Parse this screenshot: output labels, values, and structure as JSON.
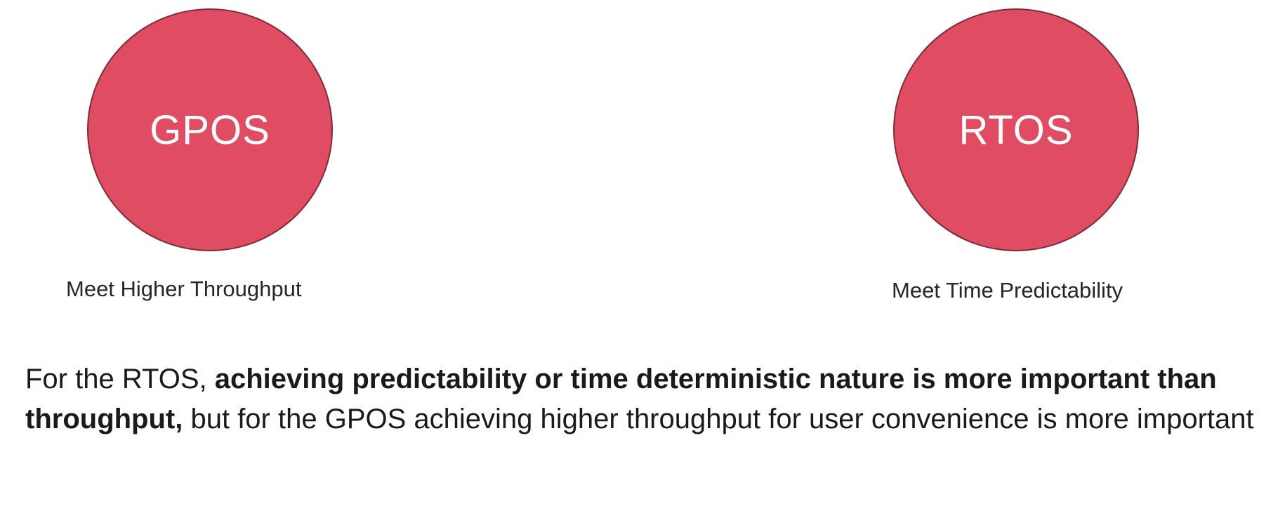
{
  "colors": {
    "circle_fill": "#e04d63",
    "circle_border": "#7d2c3a",
    "text": "#1a1a1a"
  },
  "left_node": {
    "label": "GPOS",
    "caption": "Meet Higher Throughput"
  },
  "right_node": {
    "label": "RTOS",
    "caption": "Meet Time Predictability"
  },
  "statement": {
    "part1": "For the RTOS, ",
    "part2_bold": "achieving predictability or time deterministic nature is more important than throughput,",
    "part3": " but for the GPOS  achieving higher throughput for user convenience is more important"
  }
}
